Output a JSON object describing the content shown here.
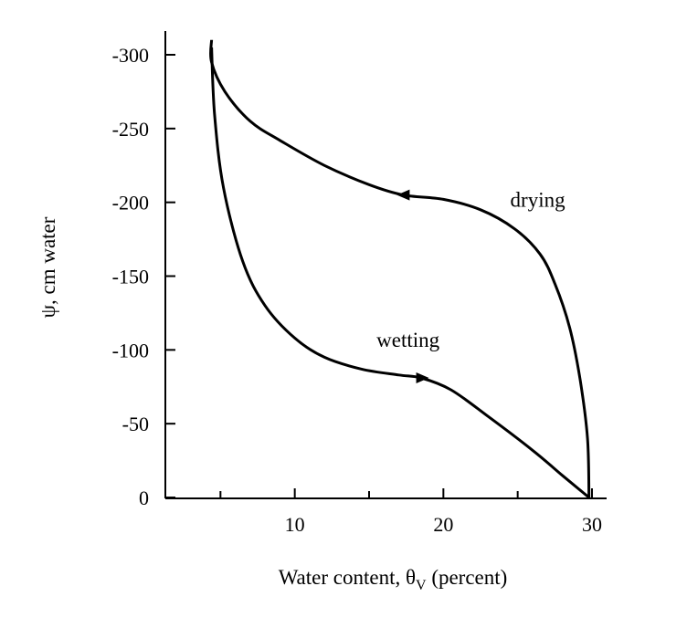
{
  "chart_data": {
    "type": "line",
    "xlabel": "Water content, θ",
    "xlabel_sub": "V",
    "xlabel_suffix": " (percent)",
    "ylabel": "ψ, cm water",
    "xlim": [
      0,
      30
    ],
    "ylim": [
      0,
      300
    ],
    "x_ticks": [
      10,
      20,
      30
    ],
    "x_minor_ticks": [
      5,
      15,
      25
    ],
    "y_ticks": [
      0,
      50,
      100,
      150,
      200,
      250,
      300
    ],
    "y_tick_labels": [
      "0",
      "-50",
      "-100",
      "-150",
      "-200",
      "-250",
      "-300"
    ],
    "grid": false,
    "series": [
      {
        "name": "drying",
        "direction": "toward lower water content",
        "points": [
          [
            29.8,
            0
          ],
          [
            29.7,
            40
          ],
          [
            29.2,
            80
          ],
          [
            28.5,
            115
          ],
          [
            27.5,
            145
          ],
          [
            26.5,
            165
          ],
          [
            24.8,
            182
          ],
          [
            22.5,
            195
          ],
          [
            20,
            202
          ],
          [
            17.3,
            205
          ],
          [
            15,
            212
          ],
          [
            12,
            225
          ],
          [
            9,
            242
          ],
          [
            7,
            255
          ],
          [
            5.3,
            275
          ],
          [
            4.4,
            295
          ],
          [
            4.4,
            310
          ]
        ]
      },
      {
        "name": "wetting",
        "direction": "toward higher water content",
        "points": [
          [
            4.4,
            305
          ],
          [
            4.6,
            260
          ],
          [
            5.2,
            210
          ],
          [
            6.5,
            160
          ],
          [
            8,
            130
          ],
          [
            10,
            108
          ],
          [
            12,
            95
          ],
          [
            14.5,
            87
          ],
          [
            17,
            83
          ],
          [
            18.5,
            81
          ],
          [
            20.5,
            73
          ],
          [
            23,
            55
          ],
          [
            26,
            32
          ],
          [
            28,
            15
          ],
          [
            29.8,
            0
          ]
        ]
      }
    ],
    "annotations": [
      {
        "text": "drying",
        "x": 24.5,
        "y": 197
      },
      {
        "text": "wetting",
        "x": 15.5,
        "y": 102
      }
    ]
  }
}
